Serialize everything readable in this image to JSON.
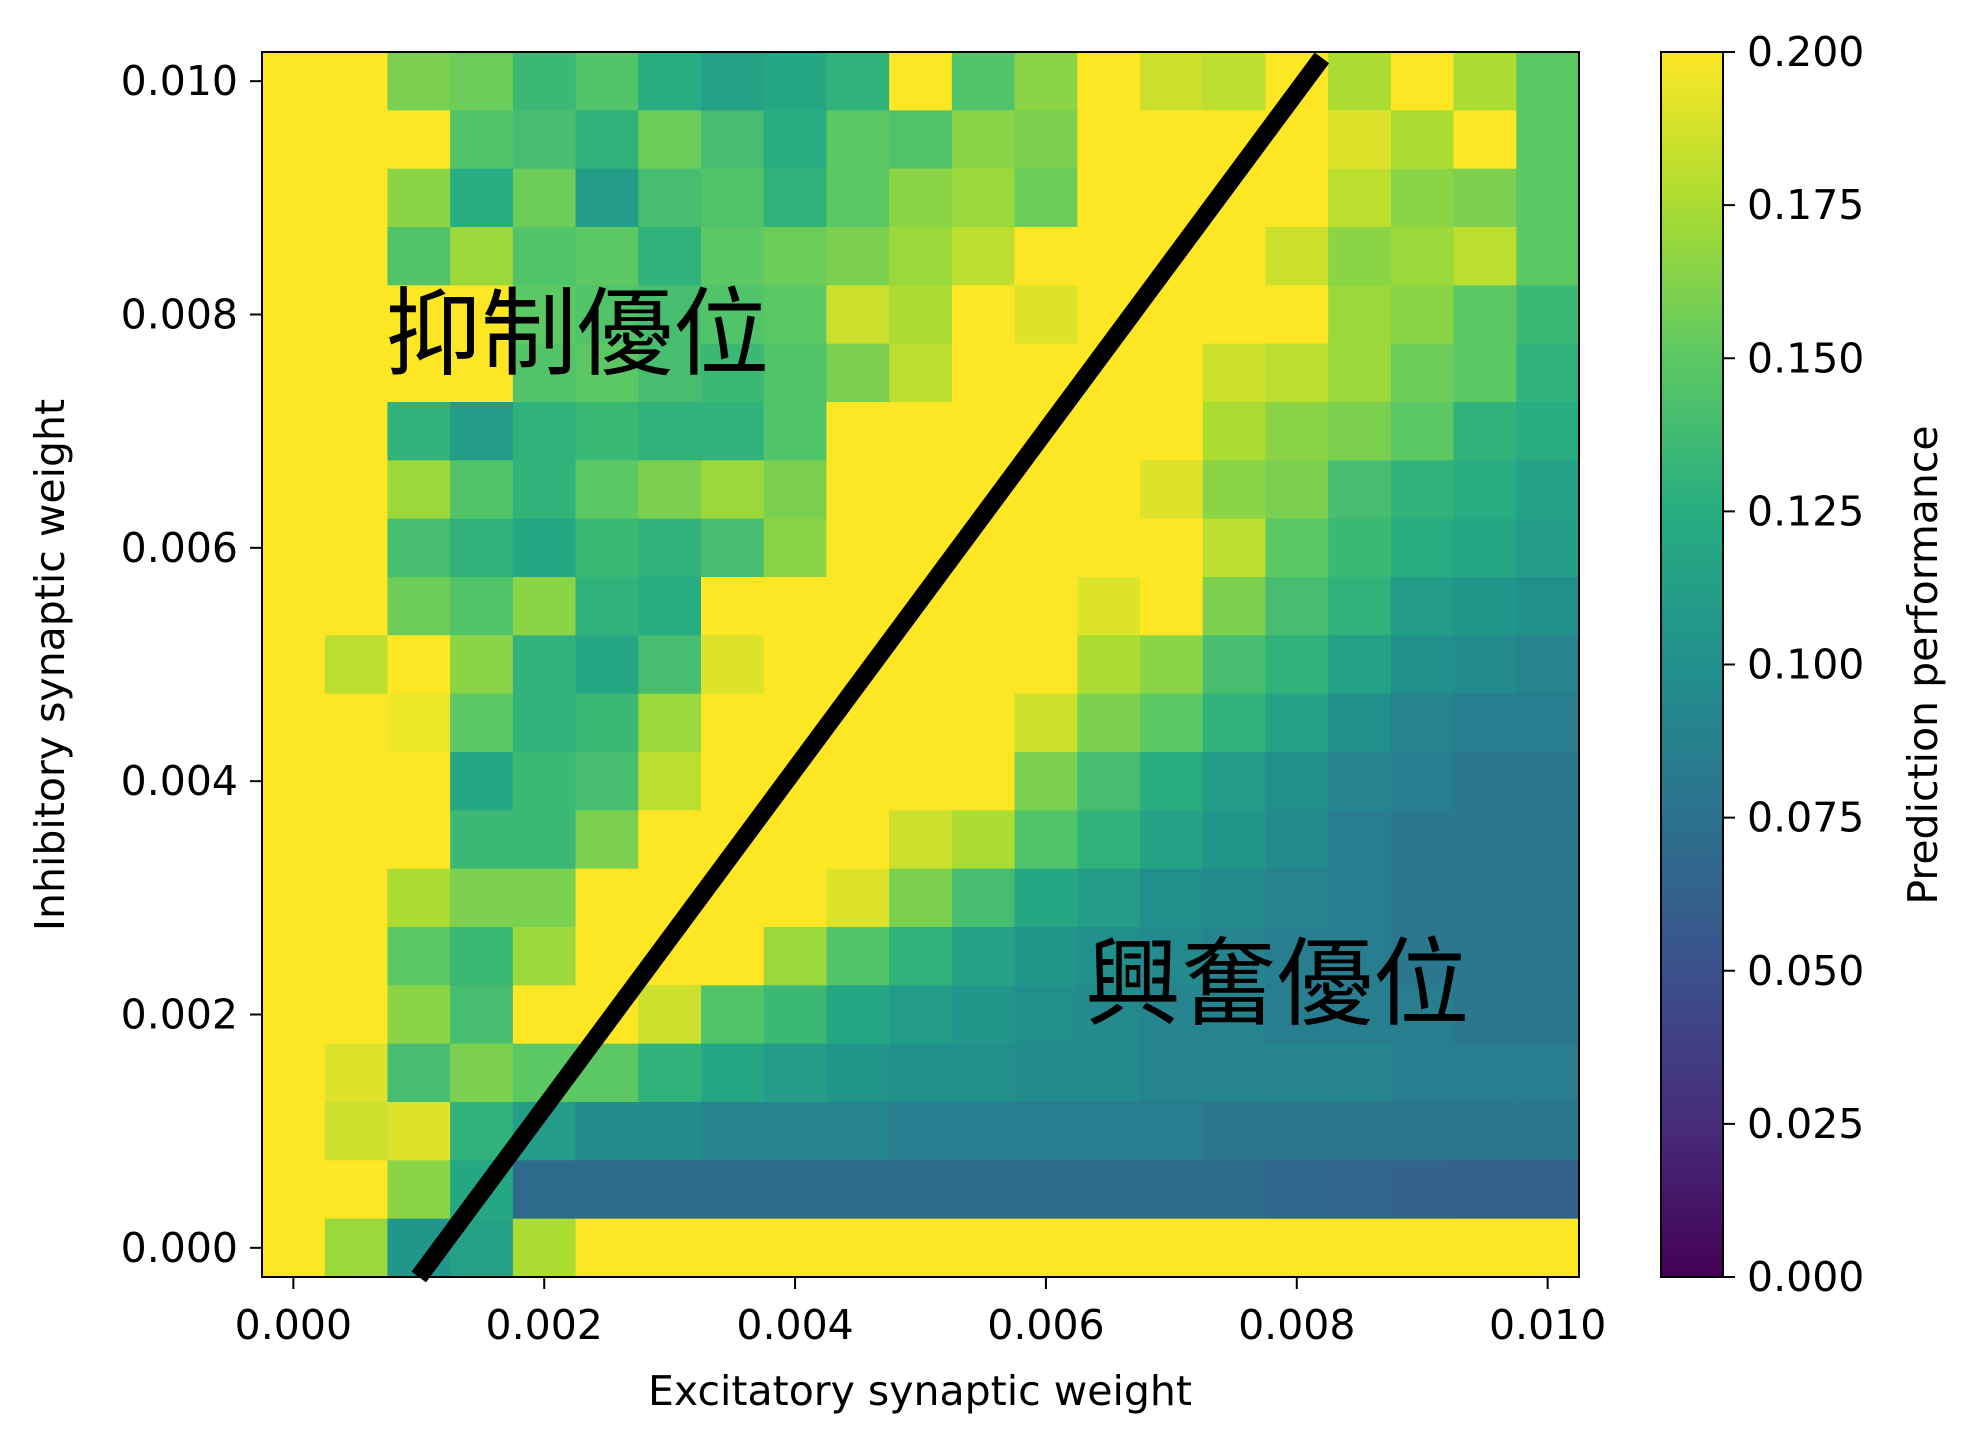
{
  "chart_data": {
    "type": "heatmap",
    "title": "",
    "xlabel": "Excitatory synaptic weight",
    "ylabel": "Inhibitory synaptic weight",
    "colorbar_label": "Prediction performance",
    "colormap": "viridis",
    "x": [
      0.0,
      0.0005,
      0.001,
      0.0015,
      0.002,
      0.0025,
      0.003,
      0.0035,
      0.004,
      0.0045,
      0.005,
      0.0055,
      0.006,
      0.0065,
      0.007,
      0.0075,
      0.008,
      0.0085,
      0.009,
      0.0095,
      0.01
    ],
    "y": [
      0.0,
      0.0005,
      0.001,
      0.0015,
      0.002,
      0.0025,
      0.003,
      0.0035,
      0.004,
      0.0045,
      0.005,
      0.0055,
      0.006,
      0.0065,
      0.007,
      0.0075,
      0.008,
      0.0085,
      0.009,
      0.0095,
      0.01
    ],
    "z_rows_top_to_bottom": [
      [
        0.2,
        0.2,
        0.16,
        0.155,
        0.135,
        0.145,
        0.125,
        0.115,
        0.12,
        0.13,
        0.2,
        0.145,
        0.165,
        0.2,
        0.185,
        0.18,
        0.2,
        0.175,
        0.2,
        0.175,
        0.15
      ],
      [
        0.2,
        0.2,
        0.2,
        0.145,
        0.14,
        0.13,
        0.155,
        0.14,
        0.125,
        0.15,
        0.145,
        0.165,
        0.16,
        0.2,
        0.2,
        0.2,
        0.2,
        0.19,
        0.175,
        0.2,
        0.15
      ],
      [
        0.2,
        0.2,
        0.165,
        0.125,
        0.155,
        0.11,
        0.14,
        0.145,
        0.13,
        0.15,
        0.165,
        0.17,
        0.155,
        0.2,
        0.2,
        0.2,
        0.2,
        0.18,
        0.165,
        0.16,
        0.15
      ],
      [
        0.2,
        0.2,
        0.145,
        0.17,
        0.145,
        0.15,
        0.13,
        0.15,
        0.155,
        0.16,
        0.17,
        0.18,
        0.2,
        0.2,
        0.2,
        0.2,
        0.185,
        0.165,
        0.17,
        0.18,
        0.15
      ],
      [
        0.2,
        0.2,
        0.2,
        0.2,
        0.15,
        0.145,
        0.14,
        0.145,
        0.15,
        0.185,
        0.175,
        0.2,
        0.19,
        0.2,
        0.2,
        0.2,
        0.2,
        0.17,
        0.165,
        0.15,
        0.135
      ],
      [
        0.2,
        0.2,
        0.2,
        0.2,
        0.145,
        0.15,
        0.14,
        0.135,
        0.145,
        0.16,
        0.18,
        0.2,
        0.2,
        0.2,
        0.2,
        0.185,
        0.18,
        0.17,
        0.155,
        0.15,
        0.13
      ],
      [
        0.2,
        0.2,
        0.13,
        0.11,
        0.13,
        0.135,
        0.13,
        0.13,
        0.145,
        0.2,
        0.2,
        0.2,
        0.2,
        0.2,
        0.2,
        0.175,
        0.165,
        0.16,
        0.15,
        0.13,
        0.125
      ],
      [
        0.2,
        0.2,
        0.17,
        0.145,
        0.13,
        0.15,
        0.16,
        0.17,
        0.16,
        0.2,
        0.2,
        0.2,
        0.2,
        0.2,
        0.19,
        0.165,
        0.16,
        0.14,
        0.13,
        0.125,
        0.115
      ],
      [
        0.2,
        0.2,
        0.14,
        0.13,
        0.12,
        0.135,
        0.13,
        0.14,
        0.165,
        0.2,
        0.2,
        0.2,
        0.2,
        0.2,
        0.2,
        0.18,
        0.15,
        0.135,
        0.125,
        0.12,
        0.11
      ],
      [
        0.2,
        0.2,
        0.155,
        0.145,
        0.165,
        0.13,
        0.125,
        0.2,
        0.2,
        0.2,
        0.2,
        0.2,
        0.2,
        0.19,
        0.2,
        0.16,
        0.14,
        0.13,
        0.11,
        0.105,
        0.1
      ],
      [
        0.2,
        0.18,
        0.2,
        0.165,
        0.13,
        0.12,
        0.14,
        0.19,
        0.2,
        0.2,
        0.2,
        0.2,
        0.2,
        0.175,
        0.165,
        0.14,
        0.13,
        0.115,
        0.1,
        0.095,
        0.09
      ],
      [
        0.2,
        0.2,
        0.195,
        0.15,
        0.13,
        0.135,
        0.17,
        0.2,
        0.2,
        0.2,
        0.2,
        0.2,
        0.185,
        0.16,
        0.15,
        0.13,
        0.115,
        0.1,
        0.09,
        0.085,
        0.085
      ],
      [
        0.2,
        0.2,
        0.2,
        0.12,
        0.135,
        0.14,
        0.18,
        0.2,
        0.2,
        0.2,
        0.2,
        0.2,
        0.16,
        0.14,
        0.125,
        0.11,
        0.1,
        0.09,
        0.085,
        0.08,
        0.08
      ],
      [
        0.2,
        0.2,
        0.2,
        0.135,
        0.135,
        0.16,
        0.2,
        0.2,
        0.2,
        0.2,
        0.185,
        0.175,
        0.145,
        0.13,
        0.115,
        0.105,
        0.095,
        0.085,
        0.08,
        0.08,
        0.08
      ],
      [
        0.2,
        0.2,
        0.175,
        0.16,
        0.16,
        0.2,
        0.2,
        0.2,
        0.2,
        0.19,
        0.16,
        0.14,
        0.12,
        0.11,
        0.1,
        0.095,
        0.09,
        0.085,
        0.08,
        0.08,
        0.08
      ],
      [
        0.2,
        0.2,
        0.15,
        0.135,
        0.17,
        0.2,
        0.2,
        0.2,
        0.17,
        0.145,
        0.13,
        0.115,
        0.105,
        0.1,
        0.095,
        0.09,
        0.085,
        0.085,
        0.08,
        0.08,
        0.08
      ],
      [
        0.2,
        0.2,
        0.165,
        0.14,
        0.2,
        0.2,
        0.185,
        0.145,
        0.135,
        0.12,
        0.11,
        0.105,
        0.1,
        0.095,
        0.09,
        0.09,
        0.085,
        0.085,
        0.085,
        0.08,
        0.08
      ],
      [
        0.2,
        0.19,
        0.14,
        0.16,
        0.15,
        0.15,
        0.13,
        0.12,
        0.11,
        0.105,
        0.1,
        0.1,
        0.095,
        0.095,
        0.09,
        0.09,
        0.09,
        0.09,
        0.085,
        0.085,
        0.085
      ],
      [
        0.2,
        0.185,
        0.19,
        0.13,
        0.11,
        0.095,
        0.095,
        0.09,
        0.09,
        0.09,
        0.085,
        0.085,
        0.085,
        0.085,
        0.085,
        0.08,
        0.08,
        0.08,
        0.08,
        0.08,
        0.08
      ],
      [
        0.2,
        0.2,
        0.165,
        0.12,
        0.07,
        0.07,
        0.07,
        0.07,
        0.07,
        0.07,
        0.07,
        0.07,
        0.07,
        0.07,
        0.07,
        0.07,
        0.068,
        0.066,
        0.064,
        0.062,
        0.062
      ],
      [
        0.2,
        0.17,
        0.105,
        0.115,
        0.175,
        0.2,
        0.2,
        0.2,
        0.2,
        0.2,
        0.2,
        0.2,
        0.2,
        0.2,
        0.2,
        0.2,
        0.2,
        0.2,
        0.2,
        0.2,
        0.2
      ]
    ],
    "xticks": [
      "0.000",
      "0.002",
      "0.004",
      "0.006",
      "0.008",
      "0.010"
    ],
    "yticks": [
      "0.000",
      "0.002",
      "0.004",
      "0.006",
      "0.008",
      "0.010"
    ],
    "colorbar_ticks": [
      "0.000",
      "0.025",
      "0.050",
      "0.075",
      "0.100",
      "0.125",
      "0.150",
      "0.175",
      "0.200"
    ],
    "xlim": [
      -0.00025,
      0.01025
    ],
    "ylim": [
      -0.00025,
      0.01025
    ],
    "vmin": 0.0,
    "vmax": 0.2,
    "boundary_line": {
      "x": [
        0.001,
        0.0082
      ],
      "y": [
        -0.00025,
        0.0102
      ],
      "color": "#000000"
    },
    "annotations": [
      {
        "text": "抑制優位"
      },
      {
        "text": "興奮優位"
      }
    ]
  }
}
